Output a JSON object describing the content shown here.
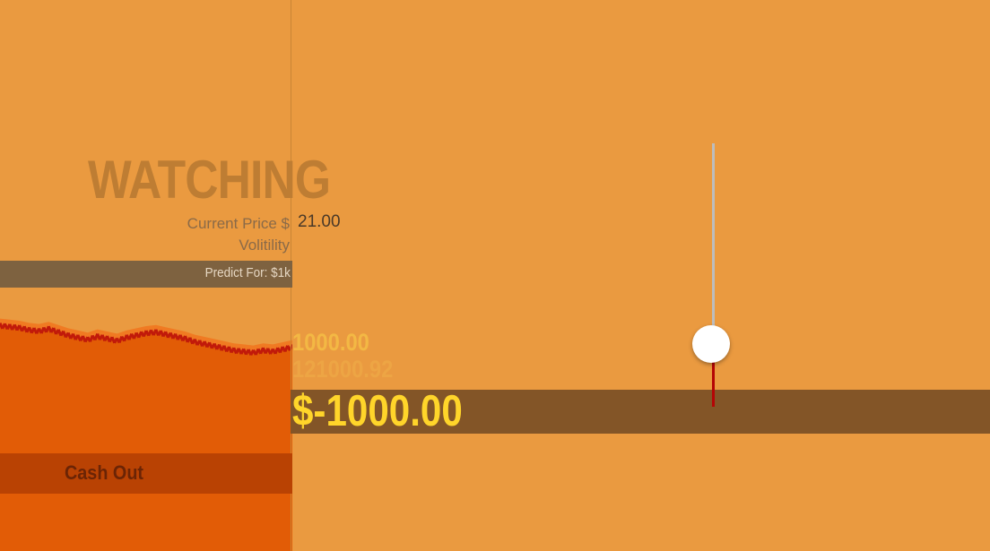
{
  "status": {
    "title": "WATCHING"
  },
  "market": {
    "current_price_label": "Current Price $",
    "current_price_value": "21.00",
    "volatility_label": "Volitility"
  },
  "predict": {
    "label": "Predict For: $1k"
  },
  "values": {
    "target": "1000.00",
    "portfolio": "121000.92",
    "profit": "$-1000.00"
  },
  "actions": {
    "cash_out_label": "Cash Out"
  },
  "slider": {
    "position_fraction": 0.75
  },
  "colors": {
    "background": "#EA9A40",
    "chart_fill": "#E25C06",
    "chart_outline": "#F07A22",
    "price_line": "#C11A0A",
    "profit_text": "#FFD52A",
    "band": "#835527",
    "cash_out_bg": "#B94203"
  },
  "icons": {
    "slider_thumb": "circle-knob-icon"
  },
  "chart_data": {
    "type": "area",
    "series": [
      {
        "values": [
          97,
          96,
          95,
          93,
          92,
          94,
          91,
          88,
          86,
          84,
          87,
          85,
          83,
          86,
          88,
          90,
          91,
          89,
          87,
          85,
          82,
          80,
          78,
          76,
          74,
          73,
          72,
          74,
          73,
          75,
          77
        ]
      }
    ],
    "ylim": [
      0,
      100
    ],
    "grid": false
  }
}
